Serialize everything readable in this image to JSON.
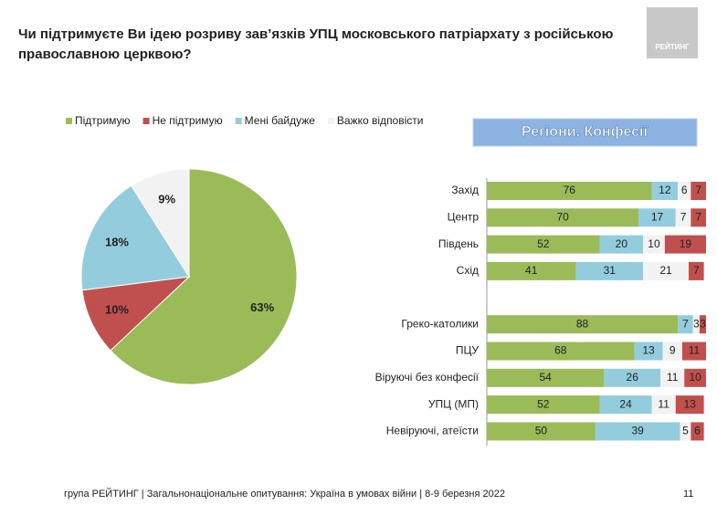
{
  "title": "Чи підтримуєте Ви ідею розриву зав’язків УПЦ московського патріархату з російською православною церквою?",
  "logo": "РЕЙТИНГ",
  "footer": "група РЕЙТИНГ | Загальнонаціональне опитування: Україна в умовах війни | 8-9 березня 2022",
  "page_number": "11",
  "chart_data": [
    {
      "type": "pie",
      "legend": "top",
      "series": [
        {
          "name": "Підтримую",
          "color": "#9bbb59",
          "values": [
            63
          ],
          "value_labels": [
            "63%"
          ]
        },
        {
          "name": "Не підтримую",
          "color": "#c0504d",
          "values": [
            10
          ],
          "value_labels": [
            "10%"
          ]
        },
        {
          "name": "Мені байдуже",
          "color": "#93cddd",
          "values": [
            18
          ],
          "value_labels": [
            "18%"
          ]
        },
        {
          "name": "Важко відповісти",
          "color": "#f2f2f2",
          "values": [
            9
          ],
          "value_labels": [
            "9%"
          ]
        }
      ]
    },
    {
      "type": "stacked-bar",
      "title": "Регіони. Конфесії",
      "categories": [
        "Захід",
        "Центр",
        "Південь",
        "Схід",
        "Греко-католики",
        "ПЦУ",
        "Віруючі без конфесії",
        "УПЦ (МП)",
        "Невіруючі, атеїсти"
      ],
      "series": [
        {
          "color": "#9bbb59",
          "values": [
            76,
            70,
            52,
            41,
            88,
            68,
            54,
            52,
            50
          ]
        },
        {
          "color": "#93cddd",
          "values": [
            12,
            17,
            20,
            31,
            7,
            13,
            26,
            24,
            39
          ]
        },
        {
          "color": "#f2f2f2",
          "values": [
            6,
            7,
            10,
            21,
            3,
            9,
            11,
            11,
            5
          ]
        },
        {
          "color": "#c0504d",
          "values": [
            7,
            7,
            19,
            7,
            3,
            11,
            10,
            13,
            6
          ]
        }
      ]
    }
  ]
}
